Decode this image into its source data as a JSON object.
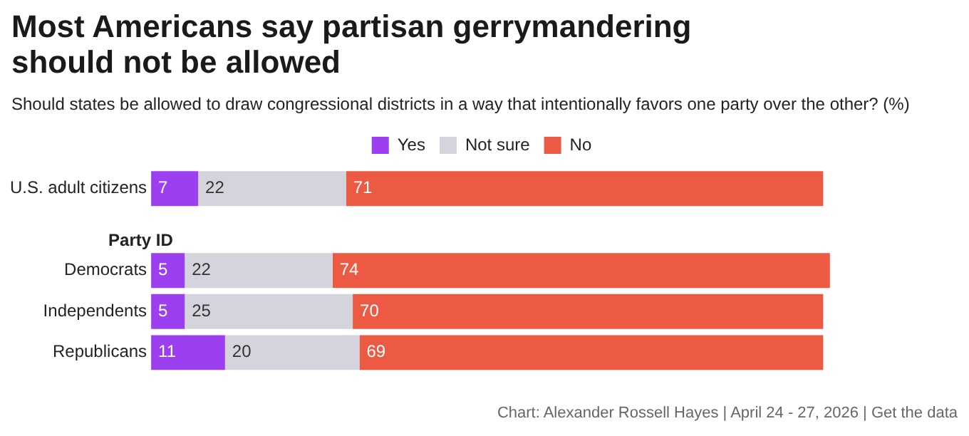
{
  "chart_data": {
    "type": "bar",
    "orientation": "horizontal",
    "stacked": true,
    "title": "Most Americans say partisan gerrymandering should not be allowed",
    "subtitle": "Should states be allowed to draw congressional districts in a way that intentionally favors one party over the other? (%)",
    "categories": [
      "U.S. adult citizens",
      null,
      "Democrats",
      "Independents",
      "Republicans"
    ],
    "series": [
      {
        "name": "Yes",
        "color": "#9b3ff0",
        "values": [
          7,
          null,
          5,
          5,
          11
        ]
      },
      {
        "name": "Not sure",
        "color": "#d4d4dc",
        "values": [
          22,
          null,
          22,
          25,
          20
        ]
      },
      {
        "name": "No",
        "color": "#ec5a44",
        "values": [
          71,
          null,
          74,
          70,
          69
        ]
      }
    ],
    "data_labels": true,
    "legend": "top",
    "grid": false,
    "tick_labels": "y",
    "annotations": [
      "Party ID",
      "Chart: Alexander Rossell Hayes | April 24 - 27, 2026 | Get the data"
    ]
  }
}
